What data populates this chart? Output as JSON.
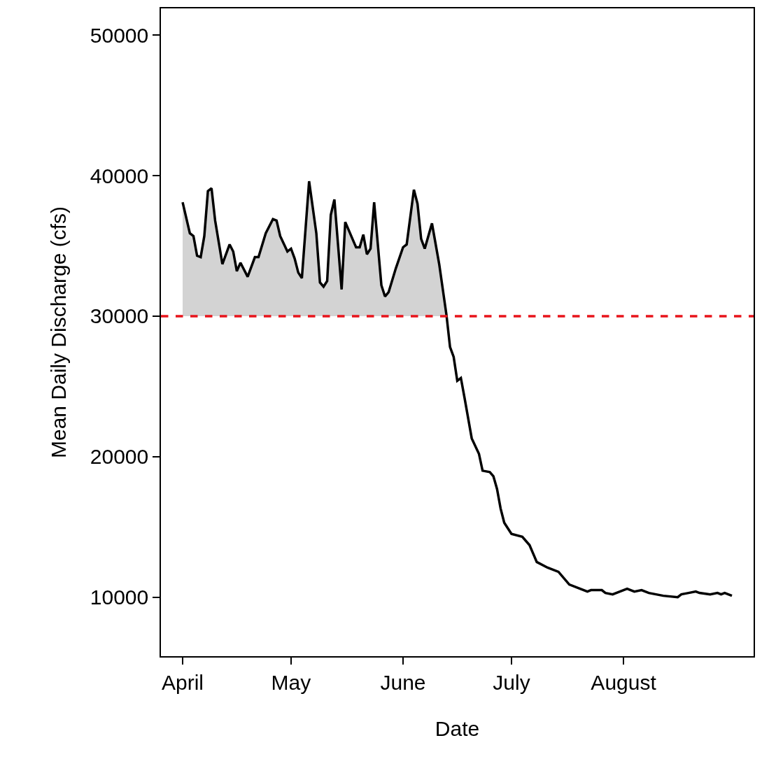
{
  "chart_data": {
    "type": "line",
    "xlabel": "Date",
    "ylabel": "Mean Daily Discharge (cfs)",
    "x": [
      "--04-01",
      "--04-03",
      "--04-04",
      "--04-05",
      "--04-06",
      "--04-07",
      "--04-08",
      "--04-09",
      "--04-10",
      "--04-12",
      "--04-14",
      "--04-15",
      "--04-16",
      "--04-17",
      "--04-19",
      "--04-21",
      "--04-22",
      "--04-24",
      "--04-26",
      "--04-27",
      "--04-28",
      "--04-30",
      "--05-01",
      "--05-02",
      "--05-03",
      "--05-04",
      "--05-06",
      "--05-08",
      "--05-09",
      "--05-10",
      "--05-11",
      "--05-12",
      "--05-13",
      "--05-15",
      "--05-16",
      "--05-19",
      "--05-20",
      "--05-21",
      "--05-22",
      "--05-23",
      "--05-24",
      "--05-26",
      "--05-27",
      "--05-28",
      "--05-30",
      "--06-01",
      "--06-02",
      "--06-04",
      "--06-05",
      "--06-06",
      "--06-07",
      "--06-09",
      "--06-11",
      "--06-13",
      "--06-14",
      "--06-15",
      "--06-16",
      "--06-17",
      "--06-18",
      "--06-20",
      "--06-22",
      "--06-23",
      "--06-25",
      "--06-26",
      "--06-27",
      "--06-28",
      "--06-29",
      "--07-01",
      "--07-04",
      "--07-06",
      "--07-08",
      "--07-11",
      "--07-14",
      "--07-17",
      "--07-20",
      "--07-22",
      "--07-23",
      "--07-26",
      "--07-27",
      "--07-29",
      "--07-31",
      "--08-02",
      "--08-04",
      "--08-06",
      "--08-08",
      "--08-10",
      "--08-12",
      "--08-16",
      "--08-17",
      "--08-19",
      "--08-21",
      "--08-22",
      "--08-25",
      "--08-27",
      "--08-28",
      "--08-29",
      "--08-31"
    ],
    "series": [
      {
        "color": "#000000",
        "values": [
          38100,
          35900,
          35700,
          34300,
          34200,
          35700,
          38900,
          39100,
          36800,
          33700,
          35100,
          34600,
          33200,
          33800,
          32800,
          34200,
          34200,
          35900,
          36900,
          36800,
          35700,
          34600,
          34800,
          34100,
          33100,
          32700,
          39600,
          35900,
          32400,
          32100,
          32500,
          37200,
          38300,
          31900,
          36700,
          34900,
          34900,
          35800,
          34400,
          34800,
          38100,
          32200,
          31400,
          31700,
          33400,
          34900,
          35100,
          39000,
          38000,
          35500,
          34800,
          36600,
          33700,
          30100,
          27800,
          27100,
          25400,
          25600,
          24200,
          21300,
          20200,
          19000,
          18900,
          18600,
          17700,
          16300,
          15300,
          14500,
          14300,
          13700,
          12500,
          12100,
          11800,
          10900,
          10600,
          10400,
          10500,
          10500,
          10300,
          10200,
          10400,
          10600,
          10400,
          10500,
          10300,
          10200,
          10100,
          10000,
          10200,
          10300,
          10400,
          10300,
          10200,
          10300,
          10200,
          10300,
          10100
        ],
        "lower": [
          30000,
          30000,
          30000,
          30000,
          30000,
          30000,
          30000,
          30000,
          30000,
          30000,
          30000,
          30000,
          30000,
          30000,
          30000,
          30000,
          30000,
          30000,
          30000,
          30000,
          30000,
          30000,
          30000,
          30000,
          30000,
          30000,
          30000,
          30000,
          30000,
          30000,
          30000,
          30000,
          30000,
          30000,
          30000,
          30000,
          30000,
          30000,
          30000,
          30000,
          30000,
          30000,
          30000,
          30000,
          30000,
          30000,
          30000,
          30000,
          30000,
          30000,
          30000,
          30000,
          30000,
          30000,
          null,
          null,
          null,
          null,
          null,
          null,
          null,
          null,
          null,
          null,
          null,
          null,
          null,
          null,
          null,
          null,
          null,
          null,
          null,
          null,
          null,
          null,
          null,
          null,
          null,
          null,
          null,
          null,
          null,
          null,
          null,
          null,
          null,
          null,
          null,
          null,
          null,
          null,
          null,
          null,
          null,
          null,
          null
        ],
        "upper": [
          38100,
          35900,
          35700,
          34300,
          34200,
          35700,
          38900,
          39100,
          36800,
          33700,
          35100,
          34600,
          33200,
          33800,
          32800,
          34200,
          34200,
          35900,
          36900,
          36800,
          35700,
          34600,
          34800,
          34100,
          33100,
          32700,
          39600,
          35900,
          32400,
          32100,
          32500,
          37200,
          38300,
          31900,
          36700,
          34900,
          34900,
          35800,
          34400,
          34800,
          38100,
          32200,
          31400,
          31700,
          33400,
          34900,
          35100,
          39000,
          38000,
          35500,
          34800,
          36600,
          33700,
          30100,
          null,
          null,
          null,
          null,
          null,
          null,
          null,
          null,
          null,
          null,
          null,
          null,
          null,
          null,
          null,
          null,
          null,
          null,
          null,
          null,
          null,
          null,
          null,
          null,
          null,
          null,
          null,
          null,
          null,
          null,
          null,
          null,
          null,
          null,
          null,
          null,
          null,
          null,
          null,
          null,
          null,
          null,
          null
        ]
      }
    ],
    "xlim": [
      "--03-26",
      "--09-06"
    ],
    "xticks": [
      {
        "value": "--04-01",
        "label": "April"
      },
      {
        "value": "--05-01",
        "label": "May"
      },
      {
        "value": "--06-01",
        "label": "June"
      },
      {
        "value": "--07-01",
        "label": "July"
      },
      {
        "value": "--08-01",
        "label": "August"
      }
    ],
    "ylim": [
      5800,
      51900
    ],
    "yticks": [
      10000,
      20000,
      30000,
      40000,
      50000
    ],
    "ref_lines": [
      {
        "axis": "y",
        "value": 30000,
        "color": "#e8141b",
        "line_style": "dashed"
      }
    ],
    "marker": "none",
    "line_style": "solid"
  }
}
